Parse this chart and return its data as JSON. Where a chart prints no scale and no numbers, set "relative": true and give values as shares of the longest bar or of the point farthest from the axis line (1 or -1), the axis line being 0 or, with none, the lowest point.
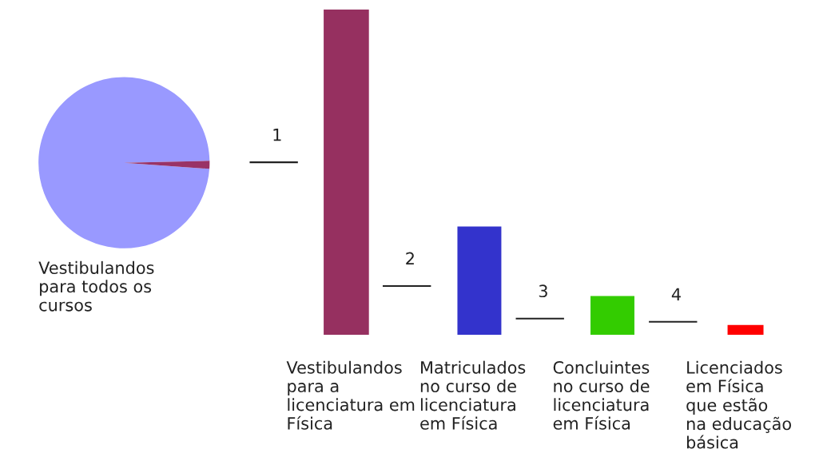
{
  "chart_data": [
    {
      "type": "pie",
      "categories": [
        "Vestibulandos\npara todos os\ncursos",
        null
      ],
      "values": [
        98.5,
        1.5
      ],
      "colors": [
        "#9999ff",
        "#993366"
      ]
    },
    {
      "type": "bar",
      "relative": true,
      "categories": [
        "Vestibulandos\npara a\nlicenciatura em\nFísica",
        "Matriculados\nno curso de\nlicenciatura\nem Física",
        "Concluintes\nno curso de\nlicenciatura\nem Física",
        "Licenciados\nem Física\nque estão\nna educação\nbásica"
      ],
      "values": [
        1,
        0.333,
        0.119,
        0.03
      ],
      "colors": [
        "#963060",
        "#3333cc",
        "#33cc00",
        "#ff0000"
      ],
      "annotations": [
        "1",
        "2",
        "3",
        "4"
      ]
    }
  ]
}
